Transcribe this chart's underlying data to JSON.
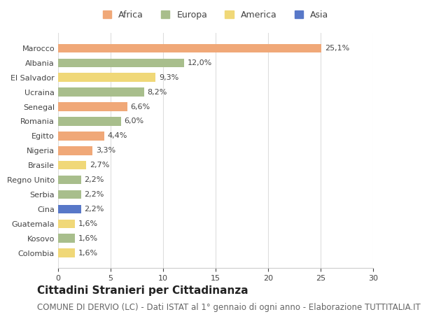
{
  "categories": [
    "Marocco",
    "Albania",
    "El Salvador",
    "Ucraina",
    "Senegal",
    "Romania",
    "Egitto",
    "Nigeria",
    "Brasile",
    "Regno Unito",
    "Serbia",
    "Cina",
    "Guatemala",
    "Kosovo",
    "Colombia"
  ],
  "values": [
    25.1,
    12.0,
    9.3,
    8.2,
    6.6,
    6.0,
    4.4,
    3.3,
    2.7,
    2.2,
    2.2,
    2.2,
    1.6,
    1.6,
    1.6
  ],
  "labels": [
    "25,1%",
    "12,0%",
    "9,3%",
    "8,2%",
    "6,6%",
    "6,0%",
    "4,4%",
    "3,3%",
    "2,7%",
    "2,2%",
    "2,2%",
    "2,2%",
    "1,6%",
    "1,6%",
    "1,6%"
  ],
  "continent": [
    "Africa",
    "Europa",
    "America",
    "Europa",
    "Africa",
    "Europa",
    "Africa",
    "Africa",
    "America",
    "Europa",
    "Europa",
    "Asia",
    "America",
    "Europa",
    "America"
  ],
  "colors": {
    "Africa": "#F0A878",
    "Europa": "#A8BE8C",
    "America": "#F0D878",
    "Asia": "#5878C8"
  },
  "legend_order": [
    "Africa",
    "Europa",
    "America",
    "Asia"
  ],
  "xlim": [
    0,
    30
  ],
  "xticks": [
    0,
    5,
    10,
    15,
    20,
    25,
    30
  ],
  "title": "Cittadini Stranieri per Cittadinanza",
  "subtitle": "COMUNE DI DERVIO (LC) - Dati ISTAT al 1° gennaio di ogni anno - Elaborazione TUTTITALIA.IT",
  "background_color": "#ffffff",
  "bar_height": 0.6,
  "title_fontsize": 11,
  "subtitle_fontsize": 8.5,
  "label_fontsize": 8,
  "tick_fontsize": 8,
  "legend_fontsize": 9
}
